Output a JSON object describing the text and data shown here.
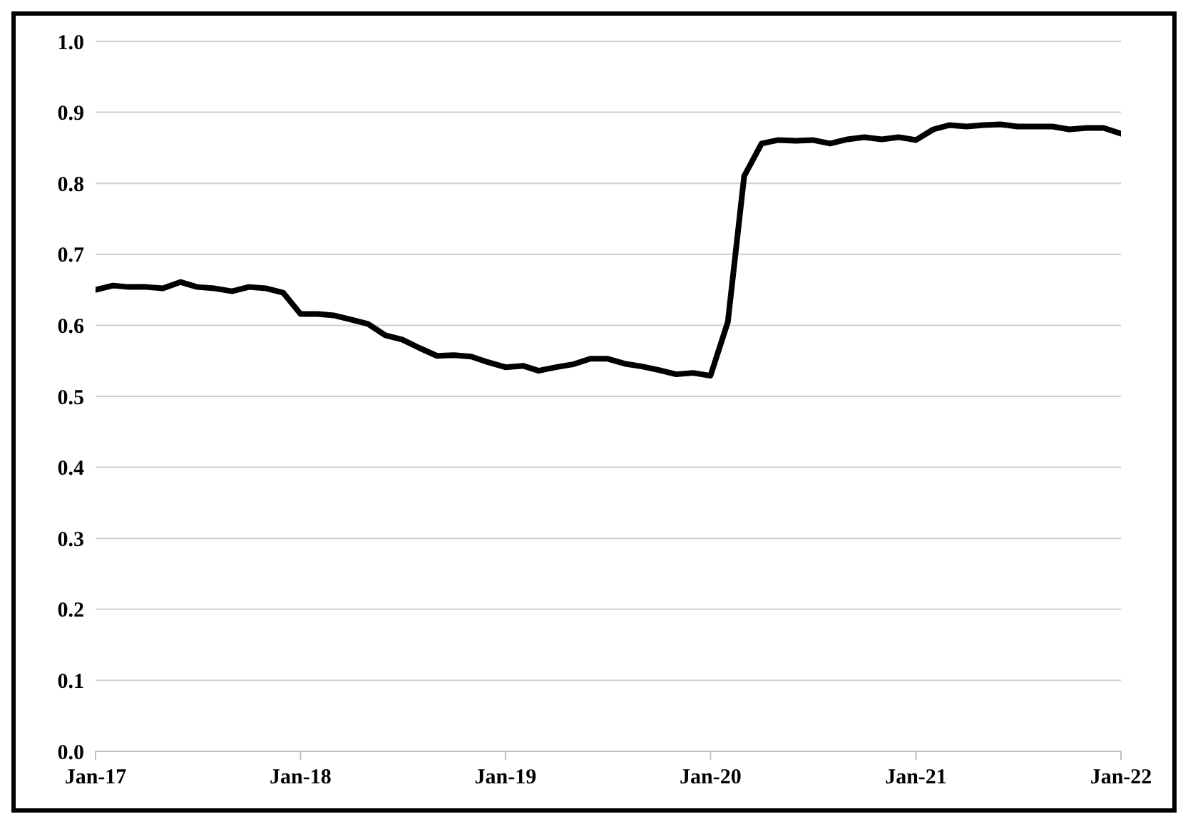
{
  "chart_data": {
    "type": "line",
    "x": [
      "2017-01",
      "2017-02",
      "2017-03",
      "2017-04",
      "2017-05",
      "2017-06",
      "2017-07",
      "2017-08",
      "2017-09",
      "2017-10",
      "2017-11",
      "2017-12",
      "2018-01",
      "2018-02",
      "2018-03",
      "2018-04",
      "2018-05",
      "2018-06",
      "2018-07",
      "2018-08",
      "2018-09",
      "2018-10",
      "2018-11",
      "2018-12",
      "2019-01",
      "2019-02",
      "2019-03",
      "2019-04",
      "2019-05",
      "2019-06",
      "2019-07",
      "2019-08",
      "2019-09",
      "2019-10",
      "2019-11",
      "2019-12",
      "2020-01",
      "2020-02",
      "2020-03",
      "2020-04",
      "2020-05",
      "2020-06",
      "2020-07",
      "2020-08",
      "2020-09",
      "2020-10",
      "2020-11",
      "2020-12",
      "2021-01",
      "2021-02",
      "2021-03",
      "2021-04",
      "2021-05",
      "2021-06",
      "2021-07",
      "2021-08",
      "2021-09",
      "2021-10",
      "2021-11",
      "2021-12",
      "2022-01"
    ],
    "series": [
      {
        "color": "#000000",
        "values": [
          0.65,
          0.656,
          0.654,
          0.654,
          0.652,
          0.661,
          0.654,
          0.652,
          0.648,
          0.654,
          0.652,
          0.646,
          0.616,
          0.616,
          0.614,
          0.608,
          0.602,
          0.586,
          0.58,
          0.568,
          0.557,
          0.558,
          0.556,
          0.548,
          0.541,
          0.543,
          0.536,
          0.541,
          0.545,
          0.553,
          0.553,
          0.546,
          0.542,
          0.537,
          0.531,
          0.533,
          0.529,
          0.605,
          0.81,
          0.856,
          0.861,
          0.86,
          0.861,
          0.856,
          0.862,
          0.865,
          0.862,
          0.865,
          0.861,
          0.876,
          0.882,
          0.88,
          0.882,
          0.883,
          0.88,
          0.88,
          0.88,
          0.876,
          0.878,
          0.878,
          0.87
        ]
      }
    ],
    "xlim": [
      "2017-01",
      "2022-01"
    ],
    "xticks": [
      {
        "value": "2017-01",
        "label": "Jan-17"
      },
      {
        "value": "2018-01",
        "label": "Jan-18"
      },
      {
        "value": "2019-01",
        "label": "Jan-19"
      },
      {
        "value": "2020-01",
        "label": "Jan-20"
      },
      {
        "value": "2021-01",
        "label": "Jan-21"
      },
      {
        "value": "2022-01",
        "label": "Jan-22"
      }
    ],
    "ylim": [
      0,
      1.0
    ],
    "yticks": [
      {
        "value": 0,
        "label": "0.0"
      },
      {
        "value": 0.1,
        "label": "0.1"
      },
      {
        "value": 0.2,
        "label": "0.2"
      },
      {
        "value": 0.3,
        "label": "0.3"
      },
      {
        "value": 0.4,
        "label": "0.4"
      },
      {
        "value": 0.5,
        "label": "0.5"
      },
      {
        "value": 0.6,
        "label": "0.6"
      },
      {
        "value": 0.7,
        "label": "0.7"
      },
      {
        "value": 0.8,
        "label": "0.8"
      },
      {
        "value": 0.9,
        "label": "0.9"
      },
      {
        "value": 1.0,
        "label": "1.0"
      }
    ],
    "grid": "y",
    "marker": "none",
    "line_style": "solid",
    "legend": false
  }
}
